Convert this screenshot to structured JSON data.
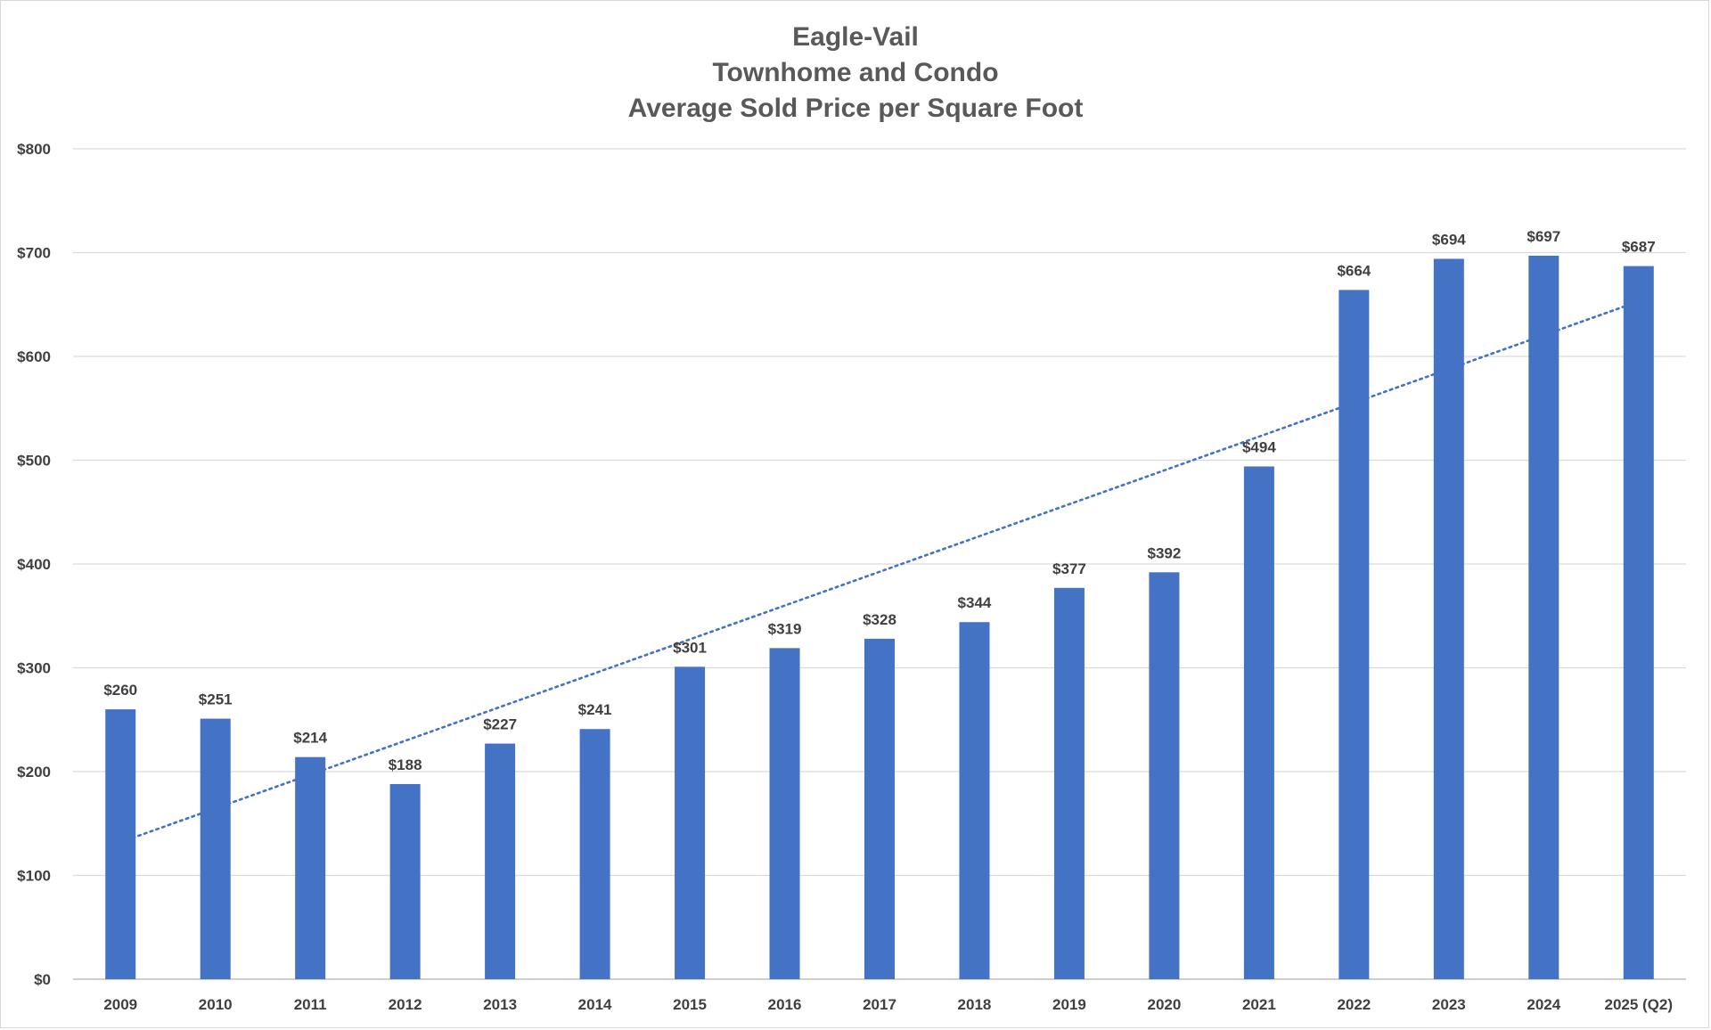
{
  "chart_data": {
    "type": "bar",
    "title_lines": [
      "Eagle-Vail",
      "Townhome and Condo",
      "Average Sold Price per Square Foot"
    ],
    "categories": [
      "2009",
      "2010",
      "2011",
      "2012",
      "2013",
      "2014",
      "2015",
      "2016",
      "2017",
      "2018",
      "2019",
      "2020",
      "2021",
      "2022",
      "2023",
      "2024",
      "2025 (Q2)"
    ],
    "values": [
      260,
      251,
      214,
      188,
      227,
      241,
      301,
      319,
      328,
      344,
      377,
      392,
      494,
      664,
      694,
      697,
      687
    ],
    "data_labels": [
      "$260",
      "$251",
      "$214",
      "$188",
      "$227",
      "$241",
      "$301",
      "$319",
      "$328",
      "$344",
      "$377",
      "$392",
      "$494",
      "$664",
      "$694",
      "$697",
      "$687"
    ],
    "y_ticks": [
      0,
      100,
      200,
      300,
      400,
      500,
      600,
      700,
      800
    ],
    "y_tick_labels": [
      "$0",
      "$100",
      "$200",
      "$300",
      "$400",
      "$500",
      "$600",
      "$700",
      "$800"
    ],
    "ylim": [
      0,
      800
    ],
    "grid": true,
    "trendline": {
      "type": "linear",
      "style": "dotted",
      "start_value": 132,
      "end_value": 653
    },
    "xlabel": "",
    "ylabel": "",
    "colors": {
      "bar": "#4472c4",
      "trend": "#4472c4",
      "grid": "#d9d9d9",
      "text": "#404040",
      "title": "#595959"
    }
  }
}
